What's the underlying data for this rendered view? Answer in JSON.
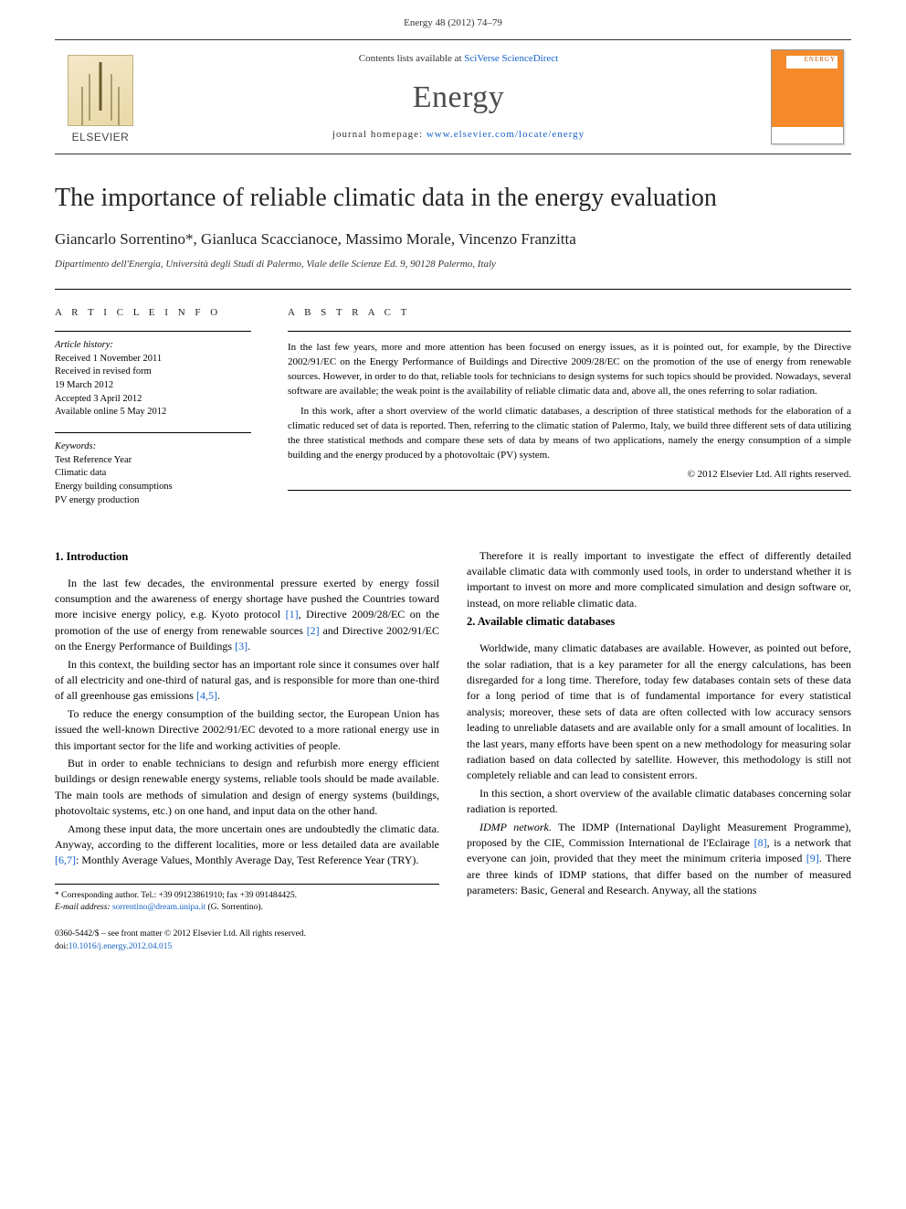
{
  "header": {
    "running_head": "Energy 48 (2012) 74–79"
  },
  "masthead": {
    "publisher_label": "ELSEVIER",
    "contents_prefix": "Contents lists available at ",
    "contents_link_text": "SciVerse ScienceDirect",
    "journal_name": "Energy",
    "homepage_prefix": "journal homepage: ",
    "homepage_link_text": "www.elsevier.com/locate/energy",
    "cover_label": "ENERGY"
  },
  "article": {
    "title": "The importance of reliable climatic data in the energy evaluation",
    "authors": "Giancarlo Sorrentino*, Gianluca Scaccianoce, Massimo Morale, Vincenzo Franzitta",
    "affiliation": "Dipartimento dell'Energia, Università degli Studi di Palermo, Viale delle Scienze Ed. 9, 90128 Palermo, Italy"
  },
  "info": {
    "heading": "A R T I C L E   I N F O",
    "history_label": "Article history:",
    "history_lines": [
      "Received 1 November 2011",
      "Received in revised form",
      "19 March 2012",
      "Accepted 3 April 2012",
      "Available online 5 May 2012"
    ],
    "keywords_label": "Keywords:",
    "keywords": [
      "Test Reference Year",
      "Climatic data",
      "Energy building consumptions",
      "PV energy production"
    ]
  },
  "abstract": {
    "heading": "A B S T R A C T",
    "p1": "In the last few years, more and more attention has been focused on energy issues, as it is pointed out, for example, by the Directive 2002/91/EC on the Energy Performance of Buildings and Directive 2009/28/EC on the promotion of the use of energy from renewable sources. However, in order to do that, reliable tools for technicians to design systems for such topics should be provided. Nowadays, several software are available; the weak point is the availability of reliable climatic data and, above all, the ones referring to solar radiation.",
    "p2": "In this work, after a short overview of the world climatic databases, a description of three statistical methods for the elaboration of a climatic reduced set of data is reported. Then, referring to the climatic station of Palermo, Italy, we build three different sets of data utilizing the three statistical methods and compare these sets of data by means of two applications, namely the energy consumption of a simple building and the energy produced by a photovoltaic (PV) system.",
    "copyright": "© 2012 Elsevier Ltd. All rights reserved."
  },
  "body": {
    "h_intro": "1.  Introduction",
    "intro_p1": "In the last few decades, the environmental pressure exerted by energy fossil consumption and the awareness of energy shortage have pushed the Countries toward more incisive energy policy, e.g. Kyoto protocol [1], Directive 2009/28/EC on the promotion of the use of energy from renewable sources [2] and Directive 2002/91/EC on the Energy Performance of Buildings [3].",
    "intro_p2": "In this context, the building sector has an important role since it consumes over half of all electricity and one-third of natural gas, and is responsible for more than one-third of all greenhouse gas emissions [4,5].",
    "intro_p3": "To reduce the energy consumption of the building sector, the European Union has issued the well-known Directive 2002/91/EC devoted to a more rational energy use in this important sector for the life and working activities of people.",
    "intro_p4": "But in order to enable technicians to design and refurbish more energy efficient buildings or design renewable energy systems, reliable tools should be made available. The main tools are methods of simulation and design of energy systems (buildings, photovoltaic systems, etc.) on one hand, and input data on the other hand.",
    "intro_p5": "Among these input data, the more uncertain ones are undoubtedly the climatic data. Anyway, according to the different localities, more or less detailed data are available [6,7]: Monthly Average Values, Monthly Average Day, Test Reference Year (TRY).",
    "intro_p6": "Therefore it is really important to investigate the effect of differently detailed available climatic data with commonly used tools, in order to understand whether it is important to invest on more and more complicated simulation and design software or, instead, on more reliable climatic data.",
    "h_db": "2.  Available climatic databases",
    "db_p1": "Worldwide, many climatic databases are available. However, as pointed out before, the solar radiation, that is a key parameter for all the energy calculations, has been disregarded for a long time. Therefore, today few databases contain sets of these data for a long period of time that is of fundamental importance for every statistical analysis; moreover, these sets of data are often collected with low accuracy sensors leading to unreliable datasets and are available only for a small amount of localities. In the last years, many efforts have been spent on a new methodology for measuring solar radiation based on data collected by satellite. However, this methodology is still not completely reliable and can lead to consistent errors.",
    "db_p2": "In this section, a short overview of the available climatic databases concerning solar radiation is reported.",
    "db_p3_lead": "IDMP network.",
    "db_p3": " The IDMP (International Daylight Measurement Programme), proposed by the CIE, Commission International de l'Eclairage [8], is a network that everyone can join, provided that they meet the minimum criteria imposed [9]. There are three kinds of IDMP stations, that differ based on the number of measured parameters: Basic, General and Research. Anyway, all the stations"
  },
  "footnotes": {
    "corr": "* Corresponding author. Tel.: +39 09123861910; fax +39 091484425.",
    "email_label": "E-mail address: ",
    "email": "sorrentino@dream.unipa.it",
    "email_who": " (G. Sorrentino)."
  },
  "footer": {
    "line1": "0360-5442/$ – see front matter © 2012 Elsevier Ltd. All rights reserved.",
    "doi_label": "doi:",
    "doi": "10.1016/j.energy.2012.04.015"
  },
  "refs": {
    "r1": "[1]",
    "r2": "[2]",
    "r3": "[3]",
    "r45": "[4,5]",
    "r67": "[6,7]",
    "r8": "[8]",
    "r9": "[9]"
  }
}
